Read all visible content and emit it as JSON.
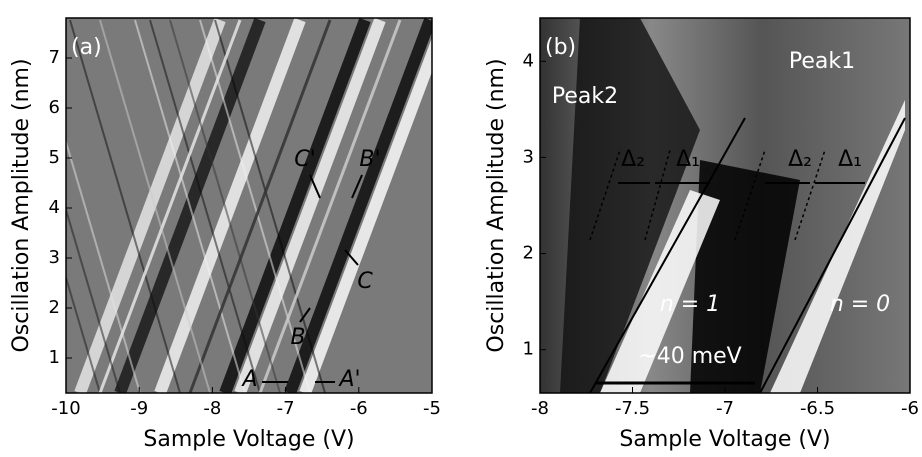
{
  "chart_data": [
    {
      "type": "heatmap",
      "panel_label": "(a)",
      "xlabel": "Sample Voltage (V)",
      "ylabel": "Oscillation Amplitude (nm)",
      "xlim": [
        -10,
        -5
      ],
      "xticks": [
        -10,
        -9,
        -8,
        -7,
        -6,
        -5
      ],
      "ylim": [
        0.3,
        7.8
      ],
      "yticks": [
        1,
        2,
        3,
        4,
        5,
        6,
        7
      ],
      "annotations": [
        "C'",
        "B'",
        "C",
        "B",
        "A",
        "A'"
      ]
    },
    {
      "type": "heatmap",
      "panel_label": "(b)",
      "xlabel": "Sample Voltage (V)",
      "ylabel": "Oscillation Amplitude (nm)",
      "xlim": [
        -8,
        -6
      ],
      "xticks": [
        -8,
        -7.5,
        -7,
        -6.5,
        -6
      ],
      "ylim": [
        0.55,
        4.45
      ],
      "yticks": [
        1,
        2,
        3,
        4
      ],
      "annotations": [
        "Peak1",
        "Peak2",
        "Δ₂",
        "Δ₁",
        "Δ₂",
        "Δ₁",
        "n = 1",
        "n = 0",
        "~40 meV"
      ]
    }
  ]
}
